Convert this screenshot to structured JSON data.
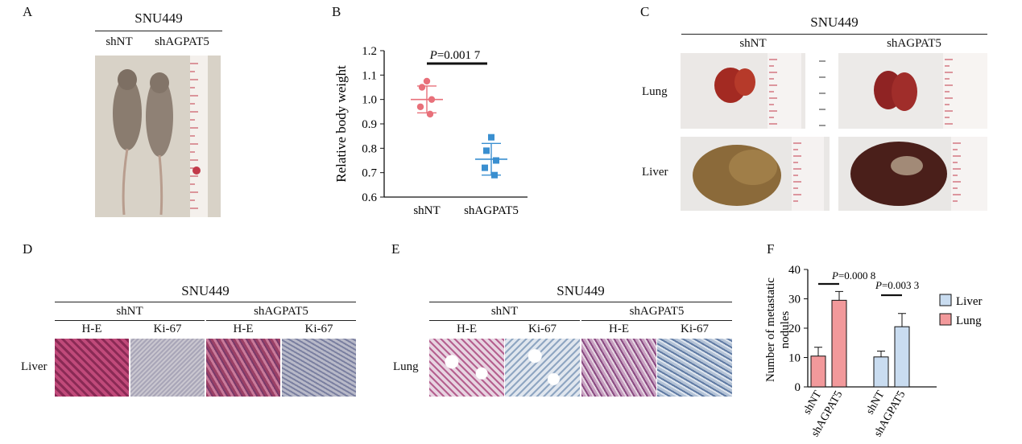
{
  "panels": {
    "a": "A",
    "b": "B",
    "c": "C",
    "d": "D",
    "e": "E",
    "f": "F"
  },
  "panel_a": {
    "title": "SNU449",
    "col1": "shNT",
    "col2": "shAGPAT5"
  },
  "panel_c": {
    "title": "SNU449",
    "col1": "shNT",
    "col2": "shAGPAT5",
    "row1": "Lung",
    "row2": "Liver"
  },
  "panel_d": {
    "title": "SNU449",
    "group1": "shNT",
    "group2": "shAGPAT5",
    "stains": [
      "H-E",
      "Ki-67",
      "H-E",
      "Ki-67"
    ],
    "row": "Liver"
  },
  "panel_e": {
    "title": "SNU449",
    "group1": "shNT",
    "group2": "shAGPAT5",
    "stains": [
      "H-E",
      "Ki-67",
      "H-E",
      "Ki-67"
    ],
    "row": "Lung"
  },
  "colors": {
    "shNT": "#e8707a",
    "shAGPAT5": "#3a8fd0",
    "liver": "#c9dcf0",
    "lung": "#f2999b"
  },
  "chart_data": [
    {
      "type": "scatter",
      "panel": "B",
      "ylabel": "Relative body weight",
      "ylim": [
        0.6,
        1.2
      ],
      "yticks": [
        "0.6",
        "0.7",
        "0.8",
        "0.9",
        "1.0",
        "1.1",
        "1.2"
      ],
      "categories": [
        "shNT",
        "shAGPAT5"
      ],
      "series": [
        {
          "category": "shNT",
          "points": [
            1.075,
            1.05,
            1.0,
            0.97,
            0.94
          ],
          "mean": 1.0,
          "sd": 0.055
        },
        {
          "category": "shAGPAT5",
          "points": [
            0.845,
            0.79,
            0.75,
            0.72,
            0.69
          ],
          "mean": 0.755,
          "sd": 0.065
        }
      ],
      "annotation": "P=0.001 7"
    },
    {
      "type": "bar",
      "panel": "F",
      "ylabel": "Number of metastatic nodules",
      "ylim": [
        0,
        40
      ],
      "yticks": [
        "0",
        "10",
        "20",
        "30",
        "40"
      ],
      "legend": [
        "Liver",
        "Lung"
      ],
      "legend_position": "right",
      "groups": [
        {
          "bars": [
            {
              "label": "shNT",
              "value": 10.5,
              "error": 3,
              "series": "Lung"
            },
            {
              "label": "shAGPAT5",
              "value": 29.5,
              "error": 3,
              "series": "Lung"
            }
          ],
          "annotation": "P=0.000 8"
        },
        {
          "bars": [
            {
              "label": "shNT",
              "value": 10.2,
              "error": 2,
              "series": "Liver"
            },
            {
              "label": "shAGPAT5",
              "value": 20.5,
              "error": 4.5,
              "series": "Liver"
            }
          ],
          "annotation": "P=0.003 3"
        }
      ]
    }
  ]
}
